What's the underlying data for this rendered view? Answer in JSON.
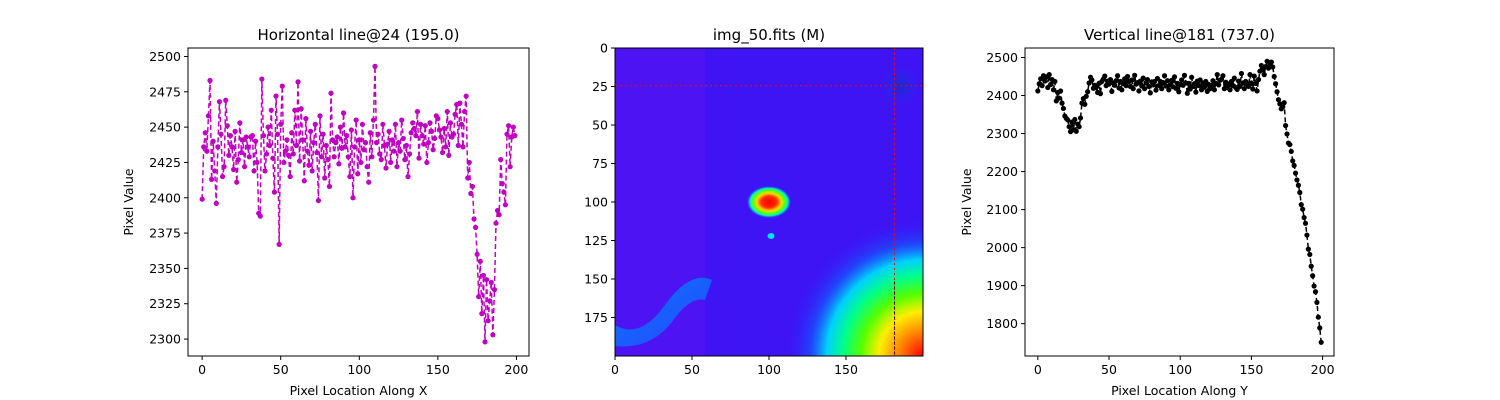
{
  "chart_data": [
    {
      "type": "line",
      "title": "Horizontal line@24 (195.0)",
      "xlabel": "Pixel Location Along X",
      "ylabel": "Pixel Value",
      "xlim": [
        -9,
        208
      ],
      "ylim": [
        2288,
        2506
      ],
      "xticks": [
        0,
        50,
        100,
        150,
        200
      ],
      "yticks": [
        2300,
        2325,
        2350,
        2375,
        2400,
        2425,
        2450,
        2475,
        2500
      ],
      "color": "#c000c0",
      "linestyle": "dashed",
      "marker": "circle",
      "series": [
        {
          "x": [
            0,
            1,
            2,
            3,
            4,
            5,
            6,
            7,
            8,
            9,
            10,
            11,
            12,
            13,
            14,
            15,
            16,
            17,
            18,
            19,
            20,
            21,
            22,
            23,
            24,
            25,
            26,
            27,
            28,
            29,
            30,
            31,
            32,
            33,
            34,
            35,
            36,
            37,
            38,
            39,
            40,
            41,
            42,
            43,
            44,
            45,
            46,
            47,
            48,
            49,
            50,
            51,
            52,
            53,
            54,
            55,
            56,
            57,
            58,
            59,
            60,
            61,
            62,
            63,
            64,
            65,
            66,
            67,
            68,
            69,
            70,
            71,
            72,
            73,
            74,
            75,
            76,
            77,
            78,
            79,
            80,
            81,
            82,
            83,
            84,
            85,
            86,
            87,
            88,
            89,
            90,
            91,
            92,
            93,
            94,
            95,
            96,
            97,
            98,
            99,
            100,
            101,
            102,
            103,
            104,
            105,
            106,
            107,
            108,
            109,
            110,
            111,
            112,
            113,
            114,
            115,
            116,
            117,
            118,
            119,
            120,
            121,
            122,
            123,
            124,
            125,
            126,
            127,
            128,
            129,
            130,
            131,
            132,
            133,
            134,
            135,
            136,
            137,
            138,
            139,
            140,
            141,
            142,
            143,
            144,
            145,
            146,
            147,
            148,
            149,
            150,
            151,
            152,
            153,
            154,
            155,
            156,
            157,
            158,
            159,
            160,
            161,
            162,
            163,
            164,
            165,
            166,
            167,
            168,
            169,
            170,
            171,
            172,
            173,
            174,
            175,
            176,
            177,
            178,
            179,
            180,
            181,
            182,
            183,
            184,
            185,
            186,
            187,
            188,
            189,
            190,
            191,
            192,
            193,
            194,
            195,
            196,
            197,
            198,
            199
          ],
          "y": [
            2399,
            2436,
            2446,
            2433,
            2458,
            2483,
            2413,
            2440,
            2419,
            2396,
            2436,
            2468,
            2445,
            2415,
            2422,
            2469,
            2451,
            2430,
            2444,
            2436,
            2420,
            2447,
            2411,
            2427,
            2453,
            2432,
            2441,
            2422,
            2443,
            2436,
            2429,
            2443,
            2444,
            2419,
            2440,
            2425,
            2389,
            2387,
            2484,
            2444,
            2419,
            2431,
            2450,
            2437,
            2462,
            2428,
            2404,
            2472,
            2445,
            2367,
            2452,
            2479,
            2425,
            2433,
            2441,
            2430,
            2415,
            2446,
            2431,
            2462,
            2437,
            2482,
            2426,
            2463,
            2441,
            2412,
            2456,
            2433,
            2423,
            2447,
            2419,
            2439,
            2452,
            2432,
            2398,
            2458,
            2429,
            2445,
            2414,
            2437,
            2427,
            2408,
            2474,
            2441,
            2429,
            2439,
            2443,
            2424,
            2450,
            2435,
            2460,
            2436,
            2444,
            2429,
            2415,
            2448,
            2400,
            2436,
            2455,
            2417,
            2441,
            2425,
            2452,
            2434,
            2439,
            2422,
            2411,
            2446,
            2429,
            2455,
            2493,
            2439,
            2445,
            2431,
            2427,
            2452,
            2437,
            2421,
            2438,
            2447,
            2425,
            2441,
            2433,
            2452,
            2422,
            2439,
            2433,
            2455,
            2442,
            2427,
            2437,
            2415,
            2431,
            2446,
            2453,
            2449,
            2444,
            2461,
            2428,
            2452,
            2444,
            2438,
            2451,
            2425,
            2439,
            2453,
            2447,
            2434,
            2442,
            2458,
            2456,
            2448,
            2443,
            2432,
            2449,
            2436,
            2461,
            2430,
            2453,
            2443,
            2445,
            2459,
            2466,
            2437,
            2467,
            2452,
            2436,
            2461,
            2472,
            2414,
            2425,
            2403,
            2408,
            2385,
            2379,
            2360,
            2330,
            2355,
            2318,
            2345,
            2298,
            2342,
            2313,
            2327,
            2340,
            2303,
            2335,
            2382,
            2391,
            2388,
            2427,
            2410,
            2404,
            2395,
            2445,
            2451,
            2422,
            2443,
            2450,
            2444
          ]
        }
      ]
    },
    {
      "type": "heatmap",
      "title": "img_50.fits (M)",
      "xlim": [
        0,
        200
      ],
      "ylim": [
        0,
        200
      ],
      "xticks": [
        0,
        50,
        100,
        150
      ],
      "yticks": [
        0,
        25,
        50,
        75,
        100,
        125,
        150,
        175
      ],
      "colormap": "gist_rainbow",
      "crosshair": {
        "row": 24,
        "column": 181,
        "color": "#ff0000"
      },
      "features": [
        {
          "name": "bright source",
          "x": 100,
          "y": 100,
          "peak": "red"
        },
        {
          "name": "faint source",
          "x": 101,
          "y": 122,
          "peak": "cyan"
        },
        {
          "name": "dark spot",
          "x": 188,
          "y": 25
        },
        {
          "name": "corner gradient",
          "x": 200,
          "y": 200,
          "peak": "red"
        },
        {
          "name": "diagonal band",
          "x": 30,
          "y": 180
        }
      ]
    },
    {
      "type": "line",
      "title": "Vertical line@181 (737.0)",
      "xlabel": "Pixel Location Along Y",
      "ylabel": "Pixel Value",
      "xlim": [
        -9,
        208
      ],
      "ylim": [
        1715,
        2525
      ],
      "xticks": [
        0,
        50,
        100,
        150,
        200
      ],
      "yticks": [
        1800,
        1900,
        2000,
        2100,
        2200,
        2300,
        2400,
        2500
      ],
      "color": "#000000",
      "linestyle": "dashed",
      "marker": "circle",
      "series": [
        {
          "x": [
            0,
            1,
            2,
            3,
            4,
            5,
            6,
            7,
            8,
            9,
            10,
            11,
            12,
            13,
            14,
            15,
            16,
            17,
            18,
            19,
            20,
            21,
            22,
            23,
            24,
            25,
            26,
            27,
            28,
            29,
            30,
            31,
            32,
            33,
            34,
            35,
            36,
            37,
            38,
            39,
            40,
            41,
            42,
            43,
            44,
            45,
            46,
            47,
            48,
            49,
            50,
            51,
            52,
            53,
            54,
            55,
            56,
            57,
            58,
            59,
            60,
            61,
            62,
            63,
            64,
            65,
            66,
            67,
            68,
            69,
            70,
            71,
            72,
            73,
            74,
            75,
            76,
            77,
            78,
            79,
            80,
            81,
            82,
            83,
            84,
            85,
            86,
            87,
            88,
            89,
            90,
            91,
            92,
            93,
            94,
            95,
            96,
            97,
            98,
            99,
            100,
            101,
            102,
            103,
            104,
            105,
            106,
            107,
            108,
            109,
            110,
            111,
            112,
            113,
            114,
            115,
            116,
            117,
            118,
            119,
            120,
            121,
            122,
            123,
            124,
            125,
            126,
            127,
            128,
            129,
            130,
            131,
            132,
            133,
            134,
            135,
            136,
            137,
            138,
            139,
            140,
            141,
            142,
            143,
            144,
            145,
            146,
            147,
            148,
            149,
            150,
            151,
            152,
            153,
            154,
            155,
            156,
            157,
            158,
            159,
            160,
            161,
            162,
            163,
            164,
            165,
            166,
            167,
            168,
            169,
            170,
            171,
            172,
            173,
            174,
            175,
            176,
            177,
            178,
            179,
            180,
            181,
            182,
            183,
            184,
            185,
            186,
            187,
            188,
            189,
            190,
            191,
            192,
            193,
            194,
            195,
            196,
            197,
            198,
            199
          ],
          "y": [
            2412,
            2431,
            2444,
            2426,
            2452,
            2438,
            2449,
            2421,
            2455,
            2429,
            2442,
            2415,
            2437,
            2386,
            2408,
            2393,
            2412,
            2380,
            2366,
            2346,
            2340,
            2336,
            2318,
            2305,
            2330,
            2310,
            2337,
            2306,
            2325,
            2318,
            2341,
            2380,
            2392,
            2377,
            2398,
            2410,
            2433,
            2448,
            2441,
            2419,
            2427,
            2421,
            2408,
            2432,
            2405,
            2437,
            2443,
            2451,
            2426,
            2438,
            2430,
            2442,
            2411,
            2433,
            2427,
            2439,
            2452,
            2420,
            2437,
            2415,
            2431,
            2444,
            2426,
            2450,
            2437,
            2424,
            2441,
            2418,
            2453,
            2430,
            2434,
            2412,
            2438,
            2425,
            2446,
            2418,
            2433,
            2442,
            2424,
            2407,
            2436,
            2428,
            2437,
            2414,
            2445,
            2426,
            2437,
            2418,
            2434,
            2452,
            2425,
            2439,
            2415,
            2428,
            2440,
            2423,
            2449,
            2419,
            2432,
            2410,
            2429,
            2441,
            2427,
            2453,
            2433,
            2406,
            2432,
            2417,
            2448,
            2424,
            2431,
            2409,
            2438,
            2426,
            2441,
            2415,
            2433,
            2422,
            2437,
            2411,
            2429,
            2418,
            2426,
            2439,
            2415,
            2432,
            2455,
            2428,
            2440,
            2443,
            2452,
            2418,
            2435,
            2421,
            2430,
            2415,
            2437,
            2426,
            2446,
            2421,
            2416,
            2438,
            2424,
            2458,
            2433,
            2418,
            2437,
            2430,
            2424,
            2455,
            2433,
            2417,
            2451,
            2432,
            2412,
            2442,
            2464,
            2479,
            2468,
            2455,
            2476,
            2490,
            2472,
            2481,
            2488,
            2475,
            2450,
            2431,
            2410,
            2389,
            2378,
            2365,
            2370,
            2381,
            2321,
            2299,
            2275,
            2271,
            2253,
            2228,
            2216,
            2196,
            2178,
            2164,
            2145,
            2113,
            2101,
            2079,
            2064,
            2033,
            1996,
            1982,
            1951,
            1926,
            1899,
            1884,
            1856,
            1817,
            1789,
            1751
          ]
        }
      ]
    }
  ]
}
